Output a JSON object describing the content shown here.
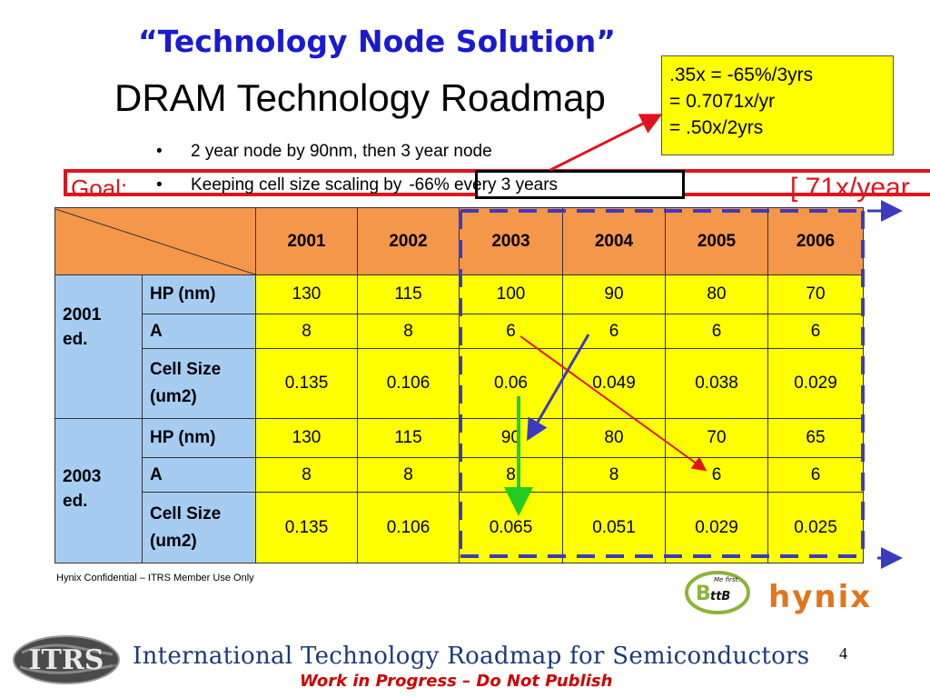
{
  "header": {
    "quote_title": "“Technology Node Solution”",
    "title": "DRAM Technology Roadmap"
  },
  "bullets": [
    "2 year node by 90nm, then 3 year node",
    "Keeping cell size scaling by",
    "-66% every 3 years"
  ],
  "bullet_symbol": "•",
  "goal": {
    "label": "Goal:",
    "rate": "[.71x/year"
  },
  "note": [
    ".35x = -65%/3yrs",
    "= 0.7071x/yr",
    "= .50x/2yrs"
  ],
  "table": {
    "years": [
      "2001",
      "2002",
      "2003",
      "2004",
      "2005",
      "2006"
    ],
    "editions": [
      {
        "label_line1": "2001",
        "label_line2": "ed.",
        "rows": [
          {
            "label": "HP (nm)",
            "values": [
              "130",
              "115",
              "100",
              "90",
              "80",
              "70"
            ]
          },
          {
            "label": "A",
            "values": [
              "8",
              "8",
              "6",
              "6",
              "6",
              "6"
            ]
          },
          {
            "label_line1": "Cell Size",
            "label_line2": "(um2)",
            "values": [
              "0.135",
              "0.106",
              "0.06",
              "0.049",
              "0.038",
              "0.029"
            ]
          }
        ]
      },
      {
        "label_line1": "2003",
        "label_line2": "ed.",
        "rows": [
          {
            "label": "HP (nm)",
            "values": [
              "130",
              "115",
              "90",
              "80",
              "70",
              "65"
            ]
          },
          {
            "label": "A",
            "values": [
              "8",
              "8",
              "8",
              "8",
              "6",
              "6"
            ]
          },
          {
            "label_line1": "Cell Size",
            "label_line2": "(um2)",
            "values": [
              "0.135",
              "0.106",
              "0.065",
              "0.051",
              "0.029",
              "0.025"
            ]
          }
        ]
      }
    ]
  },
  "footer": {
    "confidential": "Hynix Confidential – ITRS Member Use Only",
    "itrs_logo": "ITRS",
    "itrs_title": "International Technology Roadmap for Semiconductors",
    "wip": "Work in Progress – Do Not Publish",
    "page_number": "4"
  },
  "hynix_logo": {
    "badge": "B",
    "badge_sub": "ttB",
    "tagline": "Me first.",
    "name": "hynix"
  },
  "colors": {
    "title_blue": "#1a1ad0",
    "goal_red": "#e0141e",
    "header_orange": "#f5974a",
    "label_blue": "#a6ccf2",
    "value_yellow": "#ffff00",
    "dash_blue": "#3b3bc0",
    "arrow_green": "#22cc22",
    "hynix_orange": "#e2761a",
    "hynix_badge_green": "#8ab43a"
  }
}
